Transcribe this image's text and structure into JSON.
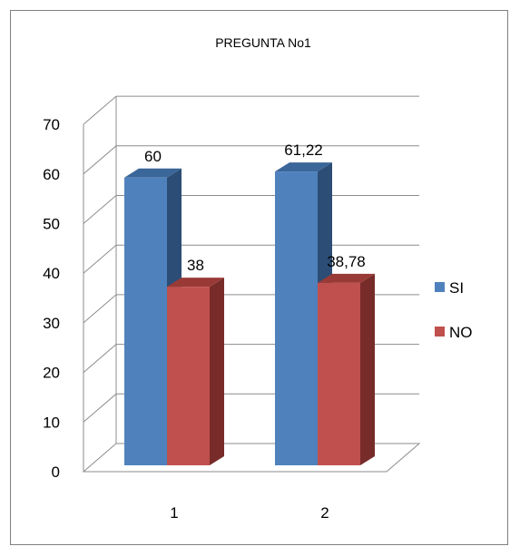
{
  "chart_data": {
    "type": "bar",
    "title": "PREGUNTA No1",
    "categories": [
      "1",
      "2"
    ],
    "series": [
      {
        "name": "SI",
        "values": [
          60,
          61.22
        ],
        "labels": [
          "60",
          "61,22"
        ]
      },
      {
        "name": "NO",
        "values": [
          38,
          38.78
        ],
        "labels": [
          "38",
          "38,78"
        ]
      }
    ],
    "ylim": [
      0,
      70
    ],
    "yticks": [
      "0",
      "10",
      "20",
      "30",
      "40",
      "50",
      "60",
      "70"
    ],
    "grid": true,
    "legend": "right",
    "style": "3d-clustered-column",
    "colors": {
      "SI": {
        "front": "#4f81bd",
        "side": "#2c4d75",
        "top": "#3a6699"
      },
      "NO": {
        "front": "#c0504d",
        "side": "#772c2a",
        "top": "#9a3a37"
      }
    }
  }
}
